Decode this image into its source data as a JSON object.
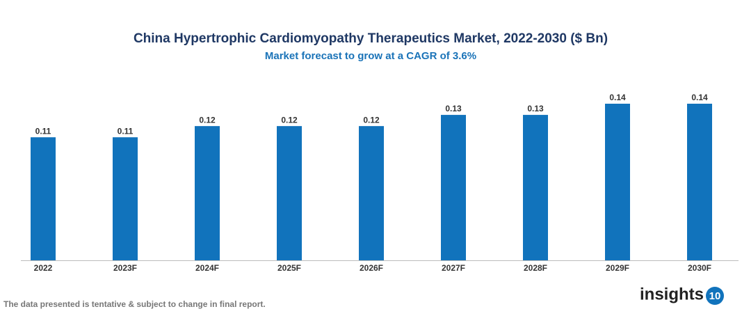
{
  "chart_data": {
    "type": "bar",
    "title": "China Hypertrophic Cardiomyopathy Therapeutics Market, 2022-2030 ($ Bn)",
    "subtitle": "Market forecast to grow at a CAGR of 3.6%",
    "categories": [
      "2022",
      "2023F",
      "2024F",
      "2025F",
      "2026F",
      "2027F",
      "2028F",
      "2029F",
      "2030F"
    ],
    "values": [
      0.11,
      0.11,
      0.12,
      0.12,
      0.12,
      0.13,
      0.13,
      0.14,
      0.14
    ],
    "color": "#1173bc"
  },
  "footnote": "The data presented is tentative & subject to change in final report.",
  "logo": {
    "text": "insights",
    "badge": "10"
  }
}
